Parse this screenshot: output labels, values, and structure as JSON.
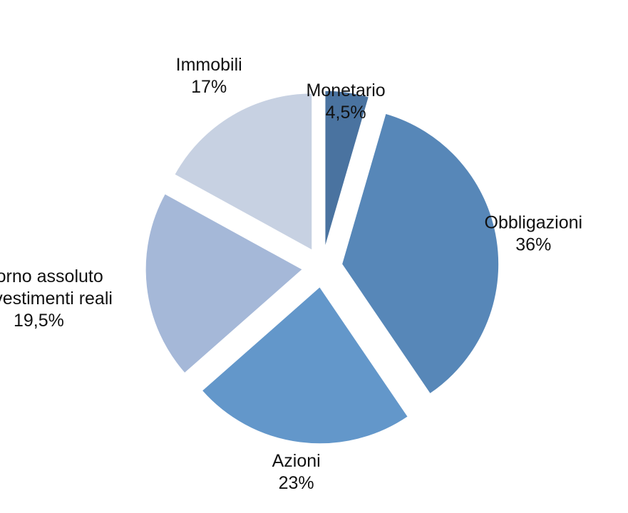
{
  "chart_data": {
    "type": "pie",
    "exploded": true,
    "start_angle_deg": 90,
    "direction": "clockwise",
    "slices": [
      {
        "label": "Monetario",
        "value_label": "4,5%",
        "value": 4.5,
        "color": "#4a73a0"
      },
      {
        "label": "Obbligazioni",
        "value_label": "36%",
        "value": 36,
        "color": "#5787b8"
      },
      {
        "label": "Azioni",
        "value_label": "23%",
        "value": 23,
        "color": "#6397ca"
      },
      {
        "label": "Ritorno assoluto\ne investimenti reali",
        "value_label": "19,5%",
        "value": 19.5,
        "color": "#a5b8d8"
      },
      {
        "label": "Immobili",
        "value_label": "17%",
        "value": 17,
        "color": "#c7d1e2"
      }
    ]
  }
}
